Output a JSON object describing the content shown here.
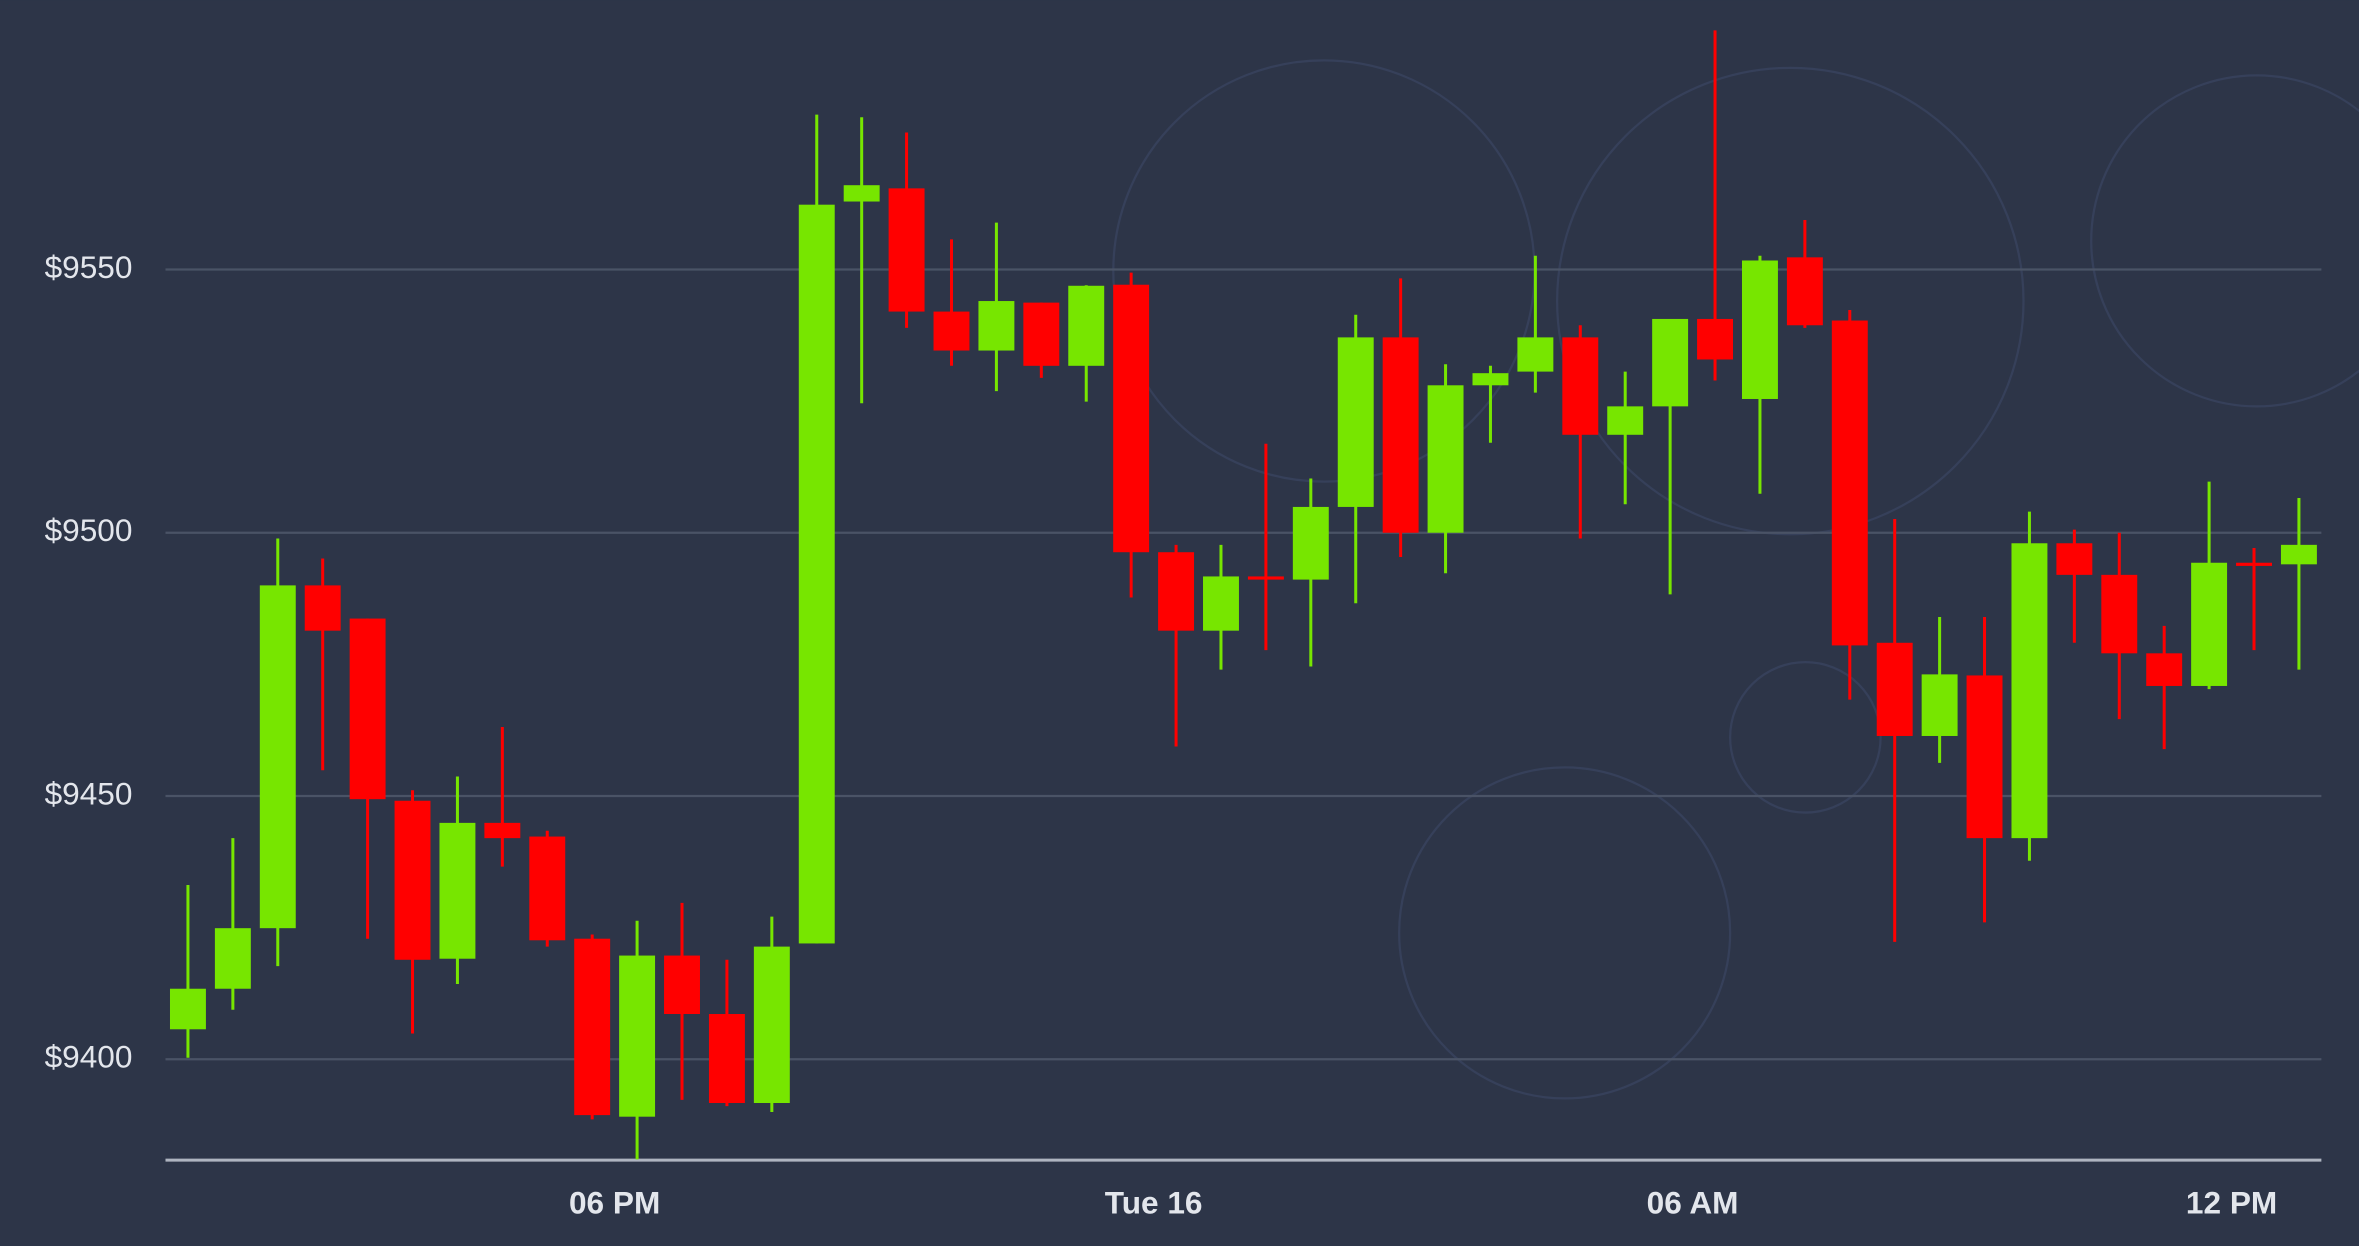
{
  "chart_data": {
    "type": "candlestick",
    "x": [
      13.25,
      13.75,
      14.25,
      14.75,
      15.25,
      15.75,
      16.25,
      16.75,
      17.25,
      17.75,
      18.25,
      18.75,
      19.25,
      19.75,
      20.25,
      20.75,
      21.25,
      21.75,
      22.25,
      22.75,
      23.25,
      23.75,
      24.25,
      24.75,
      25.25,
      25.75,
      26.25,
      26.75,
      27.25,
      27.75,
      28.25,
      28.75,
      29.25,
      29.75,
      30.25,
      30.75,
      31.25,
      31.75,
      32.25,
      32.75,
      33.25,
      33.75,
      34.25,
      34.75,
      35.25,
      35.75,
      36.25,
      36.75
    ],
    "open": [
      9405.7,
      9413.4,
      9424.9,
      9490,
      9483.7,
      9449.1,
      9419.1,
      9444.9,
      9442.3,
      9422.9,
      9389.1,
      9419.7,
      9408.6,
      9391.7,
      9422,
      9562.9,
      9565.4,
      9542,
      9534.6,
      9543.7,
      9531.7,
      9547.1,
      9496.3,
      9481.4,
      9491.7,
      9491.1,
      9504.9,
      9537.1,
      9500,
      9528,
      9530.6,
      9537.1,
      9518.6,
      9524,
      9540.6,
      9525.4,
      9552.3,
      9540.3,
      9479.1,
      9461.4,
      9472.9,
      9442,
      9498,
      9492,
      9477.1,
      9470.9,
      9494.3,
      9494
    ],
    "high": [
      9433.1,
      9442,
      9498.9,
      9495.1,
      9483.7,
      9451.1,
      9453.7,
      9463.1,
      9443.4,
      9423.7,
      9426.3,
      9429.7,
      9418.9,
      9427.1,
      9579.4,
      9578.9,
      9576,
      9555.7,
      9558.9,
      9543.7,
      9547,
      9549.4,
      9497.7,
      9497.7,
      9516.9,
      9510.3,
      9541.4,
      9548.3,
      9532,
      9531.7,
      9552.6,
      9539.4,
      9530.6,
      9540.6,
      9595.4,
      9552.6,
      9559.4,
      9542.3,
      9502.6,
      9484,
      9484,
      9504,
      9500.6,
      9500,
      9482.3,
      9509.7,
      9497.1,
      9506.6
    ],
    "low": [
      9400.3,
      9409.4,
      9417.7,
      9454.9,
      9422.9,
      9404.9,
      9414.3,
      9436.6,
      9421.4,
      9388.6,
      9381,
      9392.3,
      9391.1,
      9390,
      9422,
      9524.6,
      9538.9,
      9531.7,
      9526.9,
      9529.4,
      9524.9,
      9487.7,
      9459.4,
      9474,
      9477.7,
      9474.6,
      9486.6,
      9495.4,
      9492.3,
      9517.1,
      9526.6,
      9498.9,
      9505.4,
      9488.3,
      9528.9,
      9507.4,
      9538.9,
      9468.3,
      9422.3,
      9456.3,
      9426,
      9437.7,
      9479.1,
      9464.6,
      9458.9,
      9470.3,
      9477.7,
      9474
    ],
    "close": [
      9413.4,
      9424.9,
      9490,
      9481.4,
      9449.4,
      9418.9,
      9444.9,
      9442,
      9422.6,
      9389.4,
      9419.7,
      9408.6,
      9391.7,
      9421.4,
      9562.3,
      9566,
      9542,
      9534.6,
      9544,
      9531.7,
      9546.9,
      9496.3,
      9481.4,
      9491.7,
      9491.1,
      9504.9,
      9537.1,
      9500,
      9528,
      9530.3,
      9537.1,
      9518.6,
      9524,
      9540.6,
      9532.9,
      9551.7,
      9539.4,
      9478.6,
      9461.4,
      9473.1,
      9442,
      9498,
      9492,
      9477.1,
      9470.9,
      9494.3,
      9493.7,
      9497.7
    ],
    "up_color": "#77e600",
    "down_color": "#ff0000",
    "xlim": [
      13,
      37
    ],
    "xticks": [
      {
        "value": 18,
        "label": "06 PM"
      },
      {
        "value": 24,
        "label": "Tue 16"
      },
      {
        "value": 30,
        "label": "06 AM"
      },
      {
        "value": 36,
        "label": "12 PM"
      }
    ],
    "ylim": [
      9380,
      9600
    ],
    "yticks": [
      {
        "value": 9400,
        "label": "$9400"
      },
      {
        "value": 9450,
        "label": "$9450"
      },
      {
        "value": 9500,
        "label": "$9500"
      },
      {
        "value": 9550,
        "label": "$9550"
      }
    ],
    "grid": true
  }
}
